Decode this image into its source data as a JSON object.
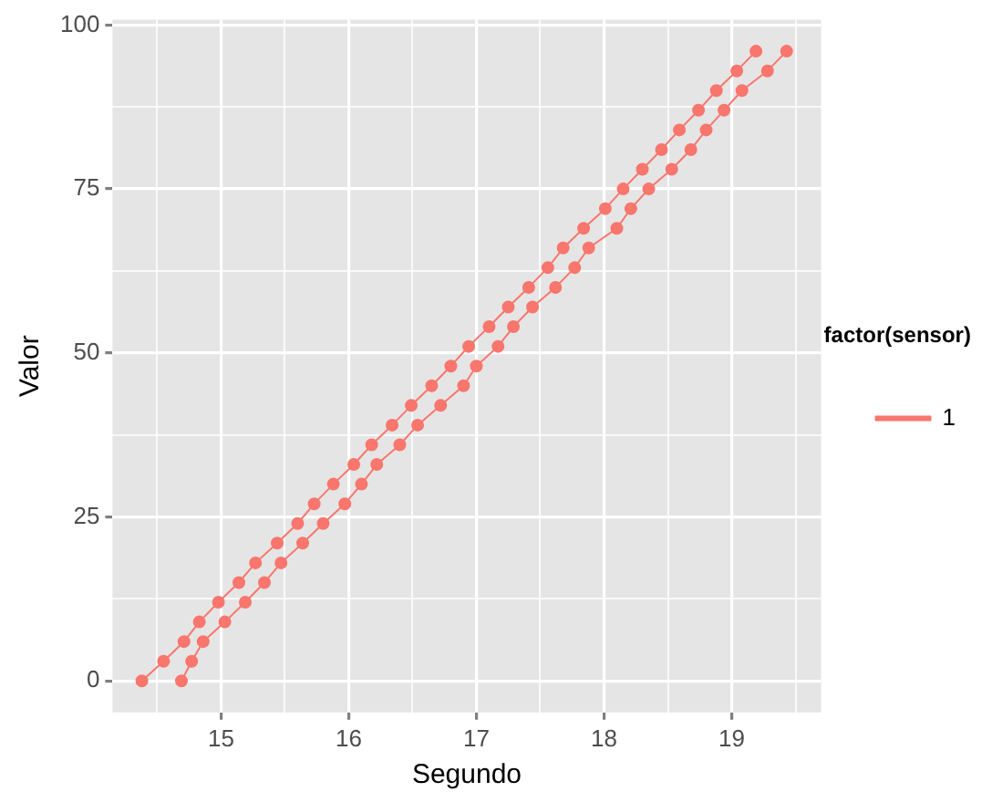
{
  "chart_data": {
    "type": "line",
    "xlabel": "Segundo",
    "ylabel": "Valor",
    "legend_title": "factor(sensor)",
    "legend": "right",
    "marker": "circle",
    "grid": true,
    "xlim": [
      14.15,
      19.7
    ],
    "ylim": [
      -4.8,
      100.8
    ],
    "xticks": [
      {
        "value": 14.5,
        "label": null
      },
      15,
      {
        "value": 15.5,
        "label": null
      },
      16,
      {
        "value": 16.5,
        "label": null
      },
      17,
      {
        "value": 17.5,
        "label": null
      },
      18,
      {
        "value": 18.5,
        "label": null
      },
      19,
      {
        "value": 19.5,
        "label": null
      }
    ],
    "yticks": [
      0,
      {
        "value": 12.5,
        "label": null
      },
      25,
      {
        "value": 37.5,
        "label": null
      },
      50,
      {
        "value": 62.5,
        "label": null
      },
      75,
      {
        "value": 87.5,
        "label": null
      },
      100
    ],
    "series": [
      {
        "name": "1",
        "color": "#f8766d",
        "x": [
          14.38,
          14.55,
          14.71,
          14.83,
          14.98,
          15.14,
          15.27,
          15.44,
          15.6,
          15.73,
          15.88,
          16.04,
          16.18,
          16.34,
          16.49,
          16.65,
          16.8,
          16.94,
          17.1,
          17.25,
          17.41,
          17.56,
          17.68,
          17.84,
          18.01,
          18.15,
          18.3,
          18.45,
          18.59,
          18.74,
          18.88,
          19.04,
          19.19
        ],
        "values": [
          0,
          3,
          6,
          9,
          12,
          15,
          18,
          21,
          24,
          27,
          30,
          33,
          36,
          39,
          42,
          45,
          48,
          51,
          54,
          57,
          60,
          63,
          66,
          69,
          72,
          75,
          78,
          81,
          84,
          87,
          90,
          93,
          96
        ]
      },
      {
        "color": "#f8766d",
        "x": [
          14.69,
          14.77,
          14.86,
          15.03,
          15.19,
          15.34,
          15.47,
          15.64,
          15.8,
          15.97,
          16.1,
          16.22,
          16.4,
          16.54,
          16.72,
          16.9,
          17.0,
          17.17,
          17.29,
          17.44,
          17.62,
          17.77,
          17.88,
          18.1,
          18.21,
          18.35,
          18.53,
          18.68,
          18.8,
          18.94,
          19.08,
          19.28,
          19.43
        ],
        "values": [
          0,
          3,
          6,
          9,
          12,
          15,
          18,
          21,
          24,
          27,
          30,
          33,
          36,
          39,
          42,
          45,
          48,
          51,
          54,
          57,
          60,
          63,
          66,
          69,
          72,
          75,
          78,
          81,
          84,
          87,
          90,
          93,
          96
        ]
      }
    ]
  }
}
